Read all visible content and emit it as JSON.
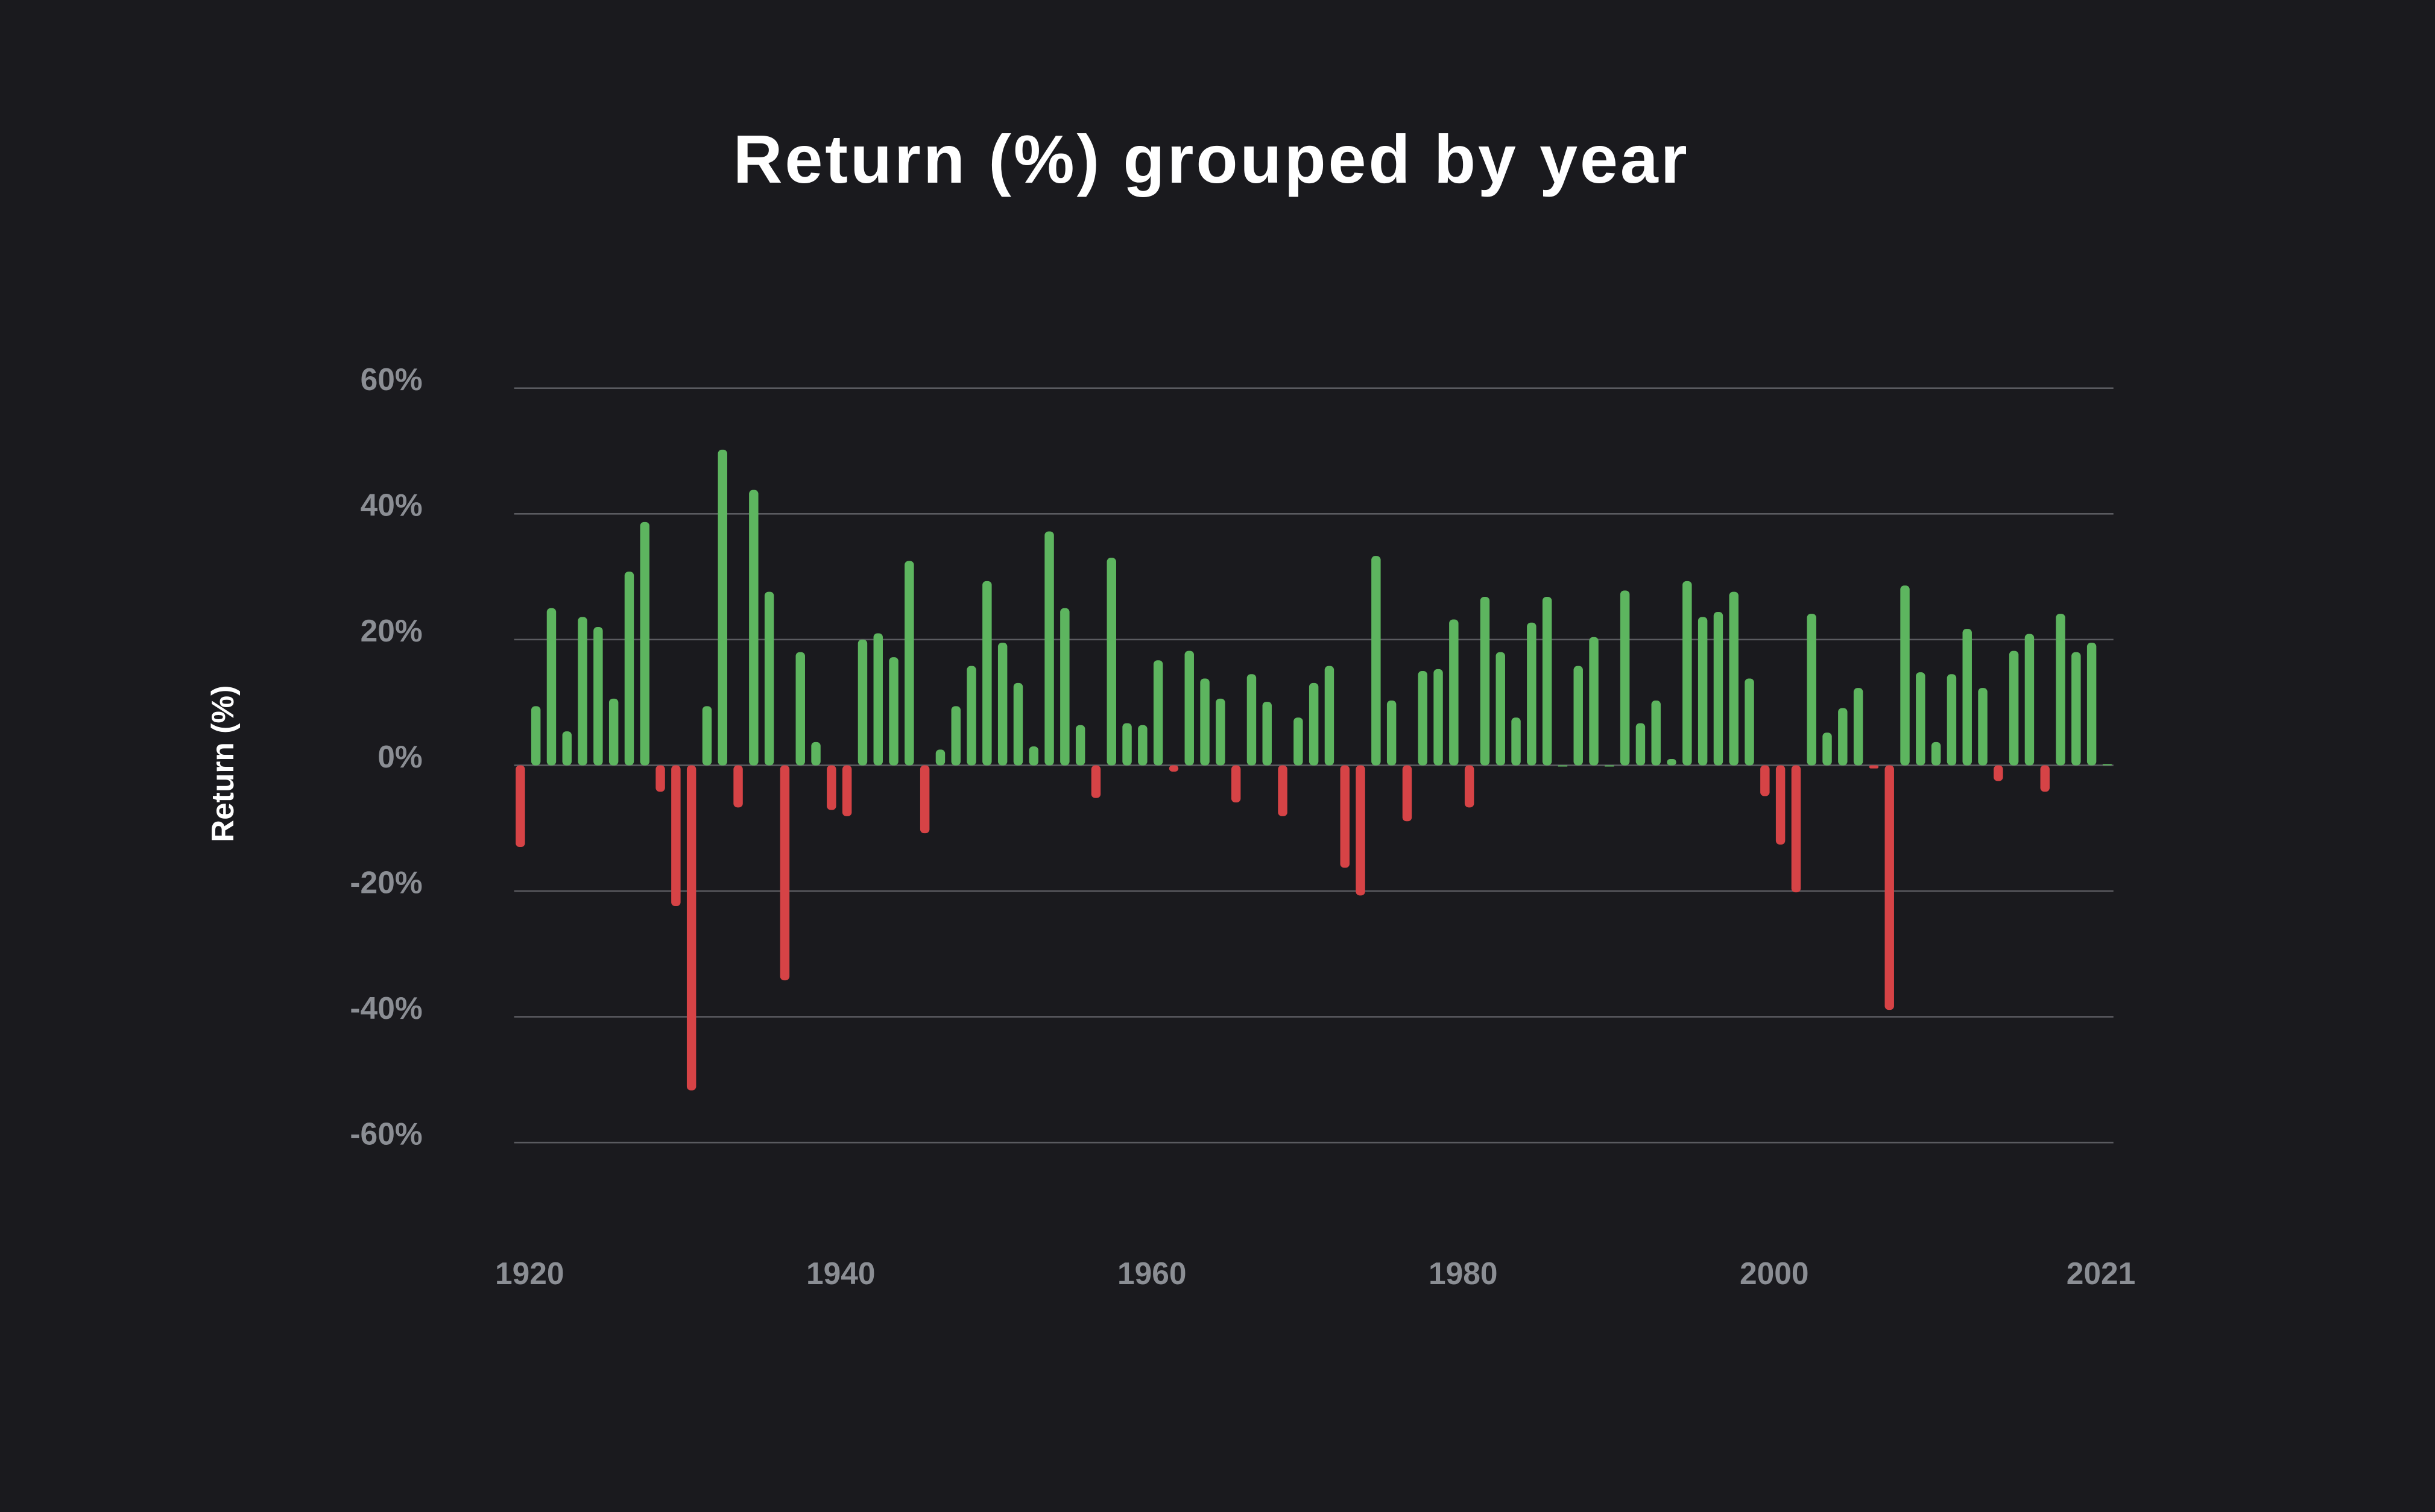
{
  "chart_data": {
    "type": "bar",
    "title": "Return (%) grouped by year",
    "y_label": "Return (%)",
    "x": [
      1920,
      1921,
      1922,
      1923,
      1924,
      1925,
      1926,
      1927,
      1928,
      1929,
      1930,
      1931,
      1932,
      1933,
      1934,
      1935,
      1936,
      1937,
      1938,
      1939,
      1940,
      1941,
      1942,
      1943,
      1944,
      1945,
      1946,
      1947,
      1948,
      1949,
      1950,
      1951,
      1952,
      1953,
      1954,
      1955,
      1956,
      1957,
      1958,
      1959,
      1960,
      1961,
      1962,
      1963,
      1964,
      1965,
      1966,
      1967,
      1968,
      1969,
      1970,
      1971,
      1972,
      1973,
      1974,
      1975,
      1976,
      1977,
      1978,
      1979,
      1980,
      1981,
      1982,
      1983,
      1984,
      1985,
      1986,
      1987,
      1988,
      1989,
      1990,
      1991,
      1992,
      1993,
      1994,
      1995,
      1996,
      1997,
      1998,
      1999,
      2000,
      2001,
      2002,
      2003,
      2004,
      2005,
      2006,
      2007,
      2008,
      2009,
      2010,
      2011,
      2012,
      2013,
      2014,
      2015,
      2016,
      2017,
      2018,
      2019,
      2020,
      2021,
      2022
    ],
    "values": [
      -13,
      9.4,
      25,
      5.4,
      23.6,
      22,
      10.6,
      30.8,
      38.7,
      -4.2,
      -22.4,
      -51.7,
      9.4,
      50.2,
      -6.7,
      43.8,
      27.6,
      -34.2,
      18,
      3.7,
      -7.1,
      -8.1,
      20,
      21,
      17.2,
      32.5,
      -10.8,
      2.5,
      9.4,
      15.8,
      29.3,
      19.5,
      13.1,
      3,
      37.2,
      25,
      6.4,
      -5.2,
      33,
      6.7,
      6.4,
      16.7,
      -1,
      18.2,
      13.8,
      10.6,
      -5.9,
      14.5,
      10.1,
      -8.1,
      7.6,
      13.1,
      15.8,
      -16.3,
      -20.7,
      33.3,
      10.3,
      -8.9,
      15,
      15.3,
      23.2,
      -6.7,
      26.8,
      18,
      7.6,
      22.7,
      26.8,
      0,
      15.8,
      20.4,
      0,
      27.8,
      6.7,
      10.3,
      1,
      29.3,
      23.6,
      24.4,
      27.6,
      13.8,
      -4.9,
      -12.6,
      -20.2,
      24.1,
      5.2,
      9.1,
      12.3,
      -0.5,
      -38.9,
      28.6,
      14.8,
      3.7,
      14.5,
      21.7,
      12.3,
      -2.5,
      18.2,
      20.9,
      -4.2,
      24.1,
      18,
      19.5,
      0.2
    ],
    "colors": {
      "positive": "#5db55f",
      "negative": "#d64346"
    },
    "xlim": [
      1919.6,
      2022.4
    ],
    "xticks": [
      1920,
      1940,
      1960,
      1980,
      2000,
      2021
    ],
    "ylim": [
      -60,
      60
    ],
    "yticks": [
      {
        "value": 60,
        "label": "60%"
      },
      {
        "value": 40,
        "label": "40%"
      },
      {
        "value": 20,
        "label": "20%"
      },
      {
        "value": 0,
        "label": "0%"
      },
      {
        "value": -20,
        "label": "-20%"
      },
      {
        "value": -40,
        "label": "-40%"
      },
      {
        "value": -60,
        "label": "-60%"
      }
    ],
    "grid": true
  }
}
